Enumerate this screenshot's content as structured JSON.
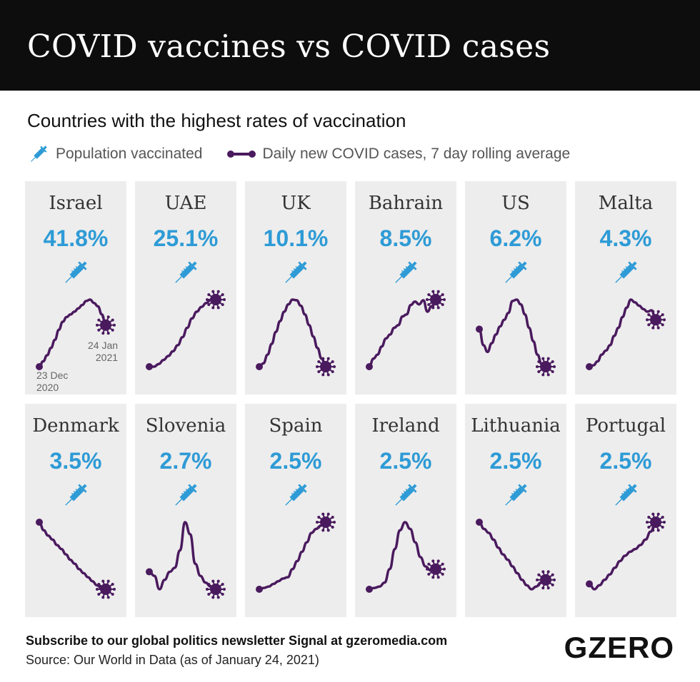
{
  "header": {
    "title": "COVID vaccines vs COVID cases"
  },
  "subtitle": "Countries with the highest rates of vaccination",
  "legend": {
    "vaccinated": "Population vaccinated",
    "cases": "Daily new COVID cases, 7 day rolling average"
  },
  "annotations": {
    "start": "23 Dec\n2020",
    "end": "24 Jan\n2021"
  },
  "footer": {
    "subscribe": "Subscribe to our global politics newsletter Signal at gzeromedia.com",
    "source": "Source: Our World in Data (as of January 24, 2021)",
    "logo": "GZERO"
  },
  "colors": {
    "accent": "#2e9bd6",
    "line": "#4a1a5e",
    "panel": "#ededed",
    "header": "#0d0d0d"
  },
  "icons": {
    "vaccine": "syringe-icon",
    "virus": "virus-icon"
  },
  "chart_data": {
    "type": "line",
    "x_range": [
      "2020-12-23",
      "2021-01-24"
    ],
    "series_note_unit": "relative",
    "series": [
      {
        "country": "Israel",
        "vaccinated": "41.8%",
        "values": [
          0.0,
          0.08,
          0.17,
          0.28,
          0.4,
          0.55,
          0.67,
          0.74,
          0.78,
          0.82,
          0.87,
          0.92,
          0.98,
          1.0,
          0.95,
          0.9,
          0.78,
          0.62
        ]
      },
      {
        "country": "UAE",
        "vaccinated": "25.1%",
        "values": [
          0.0,
          0.0,
          0.04,
          0.1,
          0.16,
          0.23,
          0.32,
          0.44,
          0.58,
          0.72,
          0.82,
          0.89,
          0.95,
          1.0,
          1.0
        ]
      },
      {
        "country": "UK",
        "vaccinated": "10.1%",
        "values": [
          0.0,
          0.05,
          0.18,
          0.34,
          0.52,
          0.68,
          0.82,
          0.93,
          1.0,
          0.99,
          0.91,
          0.78,
          0.62,
          0.45,
          0.28,
          0.12,
          0.0
        ]
      },
      {
        "country": "Bahrain",
        "vaccinated": "8.5%",
        "values": [
          0.0,
          0.12,
          0.18,
          0.3,
          0.42,
          0.48,
          0.58,
          0.62,
          0.75,
          0.78,
          0.92,
          0.97,
          0.93,
          0.99,
          0.82,
          0.9,
          1.0
        ]
      },
      {
        "country": "US",
        "vaccinated": "6.2%",
        "values": [
          0.56,
          0.32,
          0.22,
          0.35,
          0.48,
          0.6,
          0.7,
          0.8,
          0.98,
          1.0,
          0.93,
          0.78,
          0.58,
          0.38,
          0.18,
          0.04,
          0.0
        ]
      },
      {
        "country": "Malta",
        "vaccinated": "4.3%",
        "values": [
          0.0,
          0.02,
          0.08,
          0.18,
          0.24,
          0.32,
          0.46,
          0.58,
          0.74,
          0.88,
          1.0,
          0.96,
          0.91,
          0.86,
          0.82,
          0.84,
          0.7
        ]
      },
      {
        "country": "Denmark",
        "vaccinated": "3.5%",
        "values": [
          1.0,
          0.88,
          0.8,
          0.74,
          0.66,
          0.6,
          0.52,
          0.44,
          0.38,
          0.3,
          0.24,
          0.18,
          0.12,
          0.06,
          0.02,
          0.0
        ]
      },
      {
        "country": "Slovenia",
        "vaccinated": "2.7%",
        "values": [
          0.26,
          0.2,
          0.0,
          0.14,
          0.26,
          0.32,
          0.58,
          1.0,
          0.82,
          0.38,
          0.2,
          0.1,
          0.04,
          0.0
        ]
      },
      {
        "country": "Spain",
        "vaccinated": "2.5%",
        "values": [
          0.0,
          0.02,
          0.04,
          0.08,
          0.12,
          0.16,
          0.18,
          0.3,
          0.42,
          0.56,
          0.7,
          0.84,
          0.9,
          0.95,
          1.0
        ]
      },
      {
        "country": "Ireland",
        "vaccinated": "2.5%",
        "values": [
          0.0,
          0.02,
          0.04,
          0.1,
          0.3,
          0.6,
          0.88,
          1.0,
          0.9,
          0.7,
          0.48,
          0.34,
          0.28,
          0.3
        ]
      },
      {
        "country": "Lithuania",
        "vaccinated": "2.5%",
        "values": [
          1.0,
          0.9,
          0.84,
          0.74,
          0.62,
          0.52,
          0.44,
          0.34,
          0.24,
          0.14,
          0.06,
          0.0,
          0.04,
          0.1,
          0.14
        ]
      },
      {
        "country": "Portugal",
        "vaccinated": "2.5%",
        "values": [
          0.08,
          0.0,
          0.06,
          0.14,
          0.22,
          0.32,
          0.42,
          0.5,
          0.56,
          0.6,
          0.66,
          0.74,
          0.86,
          1.0
        ]
      }
    ]
  }
}
